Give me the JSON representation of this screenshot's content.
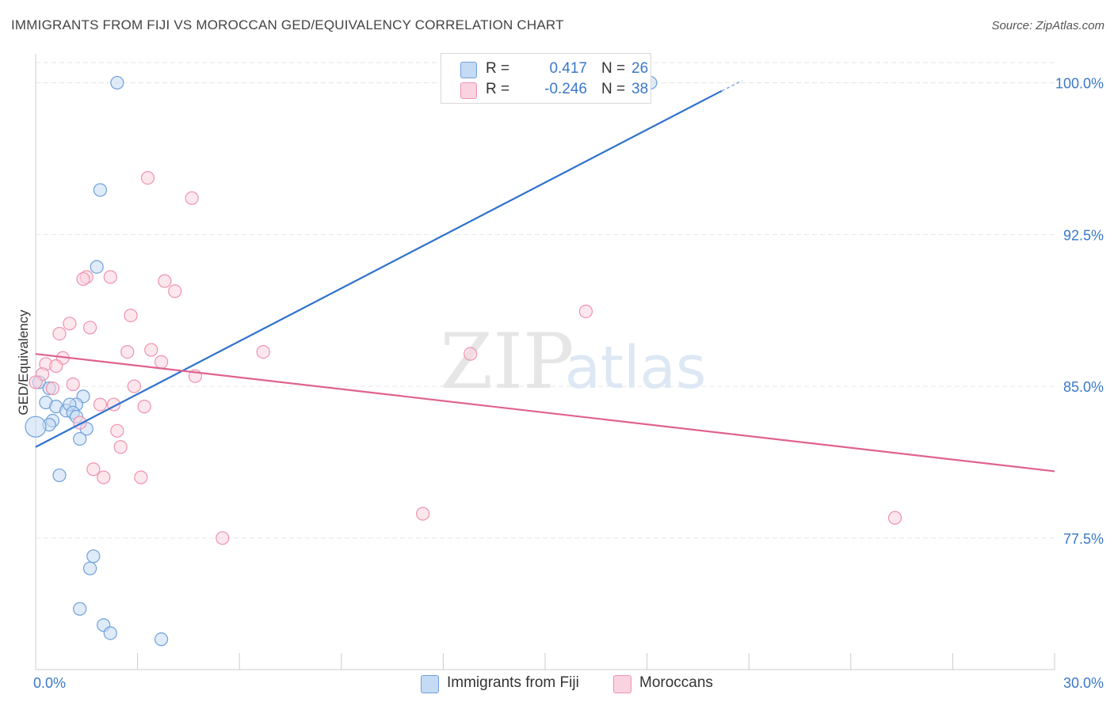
{
  "title": "IMMIGRANTS FROM FIJI VS MOROCCAN GED/EQUIVALENCY CORRELATION CHART",
  "source": "Source: ZipAtlas.com",
  "watermark": {
    "zip": "ZIP",
    "atlas": "atlas"
  },
  "legend": [
    {
      "r_label": "R =",
      "r_value": "0.417",
      "n_label": "N =",
      "n_value": "26",
      "color": "#6ea0dc"
    },
    {
      "r_label": "R =",
      "r_value": "-0.246",
      "n_label": "N =",
      "n_value": "38",
      "color": "#ee92b0"
    }
  ],
  "chart_data": {
    "type": "scatter",
    "title": "IMMIGRANTS FROM FIJI VS MOROCCAN GED/EQUIVALENCY CORRELATION CHART",
    "xlabel": "",
    "ylabel": "GED/Equivalency",
    "xlim": [
      0,
      30
    ],
    "ylim": [
      71.0,
      101.0
    ],
    "x_tick_labels": [
      "0.0%",
      "30.0%"
    ],
    "y_ticks": [
      77.5,
      85.0,
      92.5,
      100.0
    ],
    "y_tick_labels": [
      "77.5%",
      "85.0%",
      "92.5%",
      "100.0%"
    ],
    "grid": true,
    "series": [
      {
        "name": "Immigrants from Fiji",
        "color": "#6ea0dc",
        "fill": "#c5daf3",
        "line_color": "#2f72cc",
        "trend": [
          [
            0,
            82.0
          ],
          [
            20.2,
            99.6
          ]
        ],
        "trend_ext": [
          [
            20.2,
            99.6
          ],
          [
            20.8,
            100.1
          ]
        ],
        "points": [
          [
            2.4,
            100.0
          ],
          [
            18.1,
            100.0
          ],
          [
            1.9,
            94.7
          ],
          [
            1.8,
            90.9
          ],
          [
            0.1,
            85.2
          ],
          [
            0.4,
            84.9
          ],
          [
            1.4,
            84.5
          ],
          [
            0.3,
            84.2
          ],
          [
            0.6,
            84.0
          ],
          [
            0.9,
            83.8
          ],
          [
            1.2,
            84.1
          ],
          [
            1.0,
            84.1
          ],
          [
            1.1,
            83.7
          ],
          [
            1.2,
            83.5
          ],
          [
            0.5,
            83.3
          ],
          [
            0.4,
            83.1
          ],
          [
            0.0,
            83.0
          ],
          [
            1.5,
            82.9
          ],
          [
            1.3,
            82.4
          ],
          [
            0.7,
            80.6
          ],
          [
            1.7,
            76.6
          ],
          [
            1.6,
            76.0
          ],
          [
            1.3,
            74.0
          ],
          [
            2.0,
            73.2
          ],
          [
            2.2,
            72.8
          ],
          [
            3.7,
            72.5
          ]
        ]
      },
      {
        "name": "Moroccans",
        "color": "#ee92b0",
        "fill": "#f9d3df",
        "line_color": "#e0628e",
        "trend": [
          [
            0,
            86.6
          ],
          [
            30,
            80.8
          ]
        ],
        "points": [
          [
            3.3,
            95.3
          ],
          [
            4.6,
            94.3
          ],
          [
            1.5,
            90.4
          ],
          [
            2.2,
            90.4
          ],
          [
            1.4,
            90.3
          ],
          [
            3.8,
            90.2
          ],
          [
            4.1,
            89.7
          ],
          [
            16.2,
            88.7
          ],
          [
            2.8,
            88.5
          ],
          [
            1.0,
            88.1
          ],
          [
            1.6,
            87.9
          ],
          [
            0.7,
            87.6
          ],
          [
            3.4,
            86.8
          ],
          [
            2.7,
            86.7
          ],
          [
            6.7,
            86.7
          ],
          [
            12.8,
            86.6
          ],
          [
            0.8,
            86.4
          ],
          [
            3.7,
            86.2
          ],
          [
            0.3,
            86.1
          ],
          [
            0.6,
            86.0
          ],
          [
            0.2,
            85.6
          ],
          [
            4.7,
            85.5
          ],
          [
            0.0,
            85.2
          ],
          [
            1.1,
            85.1
          ],
          [
            2.9,
            85.0
          ],
          [
            0.5,
            84.9
          ],
          [
            1.9,
            84.1
          ],
          [
            2.3,
            84.1
          ],
          [
            3.2,
            84.0
          ],
          [
            1.3,
            83.2
          ],
          [
            2.4,
            82.8
          ],
          [
            2.5,
            82.0
          ],
          [
            1.7,
            80.9
          ],
          [
            2.0,
            80.5
          ],
          [
            3.1,
            80.5
          ],
          [
            11.4,
            78.7
          ],
          [
            25.3,
            78.5
          ],
          [
            5.5,
            77.5
          ]
        ]
      }
    ]
  }
}
